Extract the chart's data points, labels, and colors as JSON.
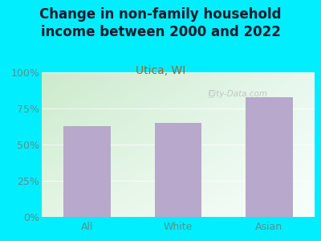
{
  "title": "Change in non-family household\nincome between 2000 and 2022",
  "subtitle": "Utica, WI",
  "categories": [
    "All",
    "White",
    "Asian"
  ],
  "values": [
    63,
    65,
    83
  ],
  "bar_color": "#b8a8cc",
  "background_color": "#00eeff",
  "plot_bg_topleft": "#d8efd0",
  "plot_bg_bottomright": "#f5fff8",
  "title_color": "#1a1a2e",
  "subtitle_color": "#996633",
  "axis_label_color": "#5a9090",
  "tick_label_color": "#5a9090",
  "ylim": [
    0,
    100
  ],
  "yticks": [
    0,
    25,
    50,
    75,
    100
  ],
  "ytick_labels": [
    "0%",
    "25%",
    "50%",
    "75%",
    "100%"
  ],
  "watermark": "City-Data.com",
  "title_fontsize": 12,
  "subtitle_fontsize": 10,
  "tick_fontsize": 9
}
